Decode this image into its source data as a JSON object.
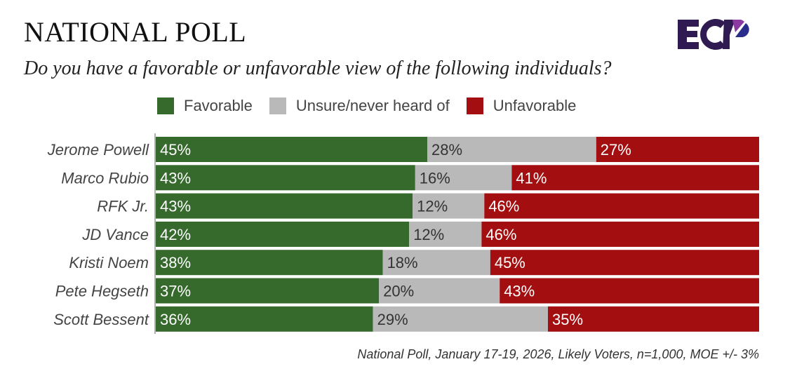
{
  "header": {
    "title": "NATIONAL POLL",
    "subtitle": "Do you have a favorable or unfavorable view of the following individuals?",
    "logo_text": "ECP"
  },
  "footnote": "National Poll, January 17-19, 2026, Likely Voters, n=1,000, MOE +/- 3%",
  "chart_data": {
    "type": "bar",
    "orientation": "horizontal-stacked",
    "title": "Do you have a favorable or unfavorable view of the following individuals?",
    "categories": [
      "Jerome Powell",
      "Marco Rubio",
      "RFK Jr.",
      "JD Vance",
      "Kristi Noem",
      "Pete Hegseth",
      "Scott Bessent"
    ],
    "series": [
      {
        "name": "Favorable",
        "color": "#356a2c",
        "values": [
          45,
          43,
          43,
          42,
          38,
          37,
          36
        ]
      },
      {
        "name": "Unsure/never heard of",
        "color": "#b9b9b9",
        "values": [
          28,
          16,
          12,
          12,
          18,
          20,
          29
        ]
      },
      {
        "name": "Unfavorable",
        "color": "#a30f10",
        "values": [
          27,
          41,
          46,
          46,
          45,
          43,
          35
        ]
      }
    ],
    "legend": "top",
    "unit": "%"
  }
}
